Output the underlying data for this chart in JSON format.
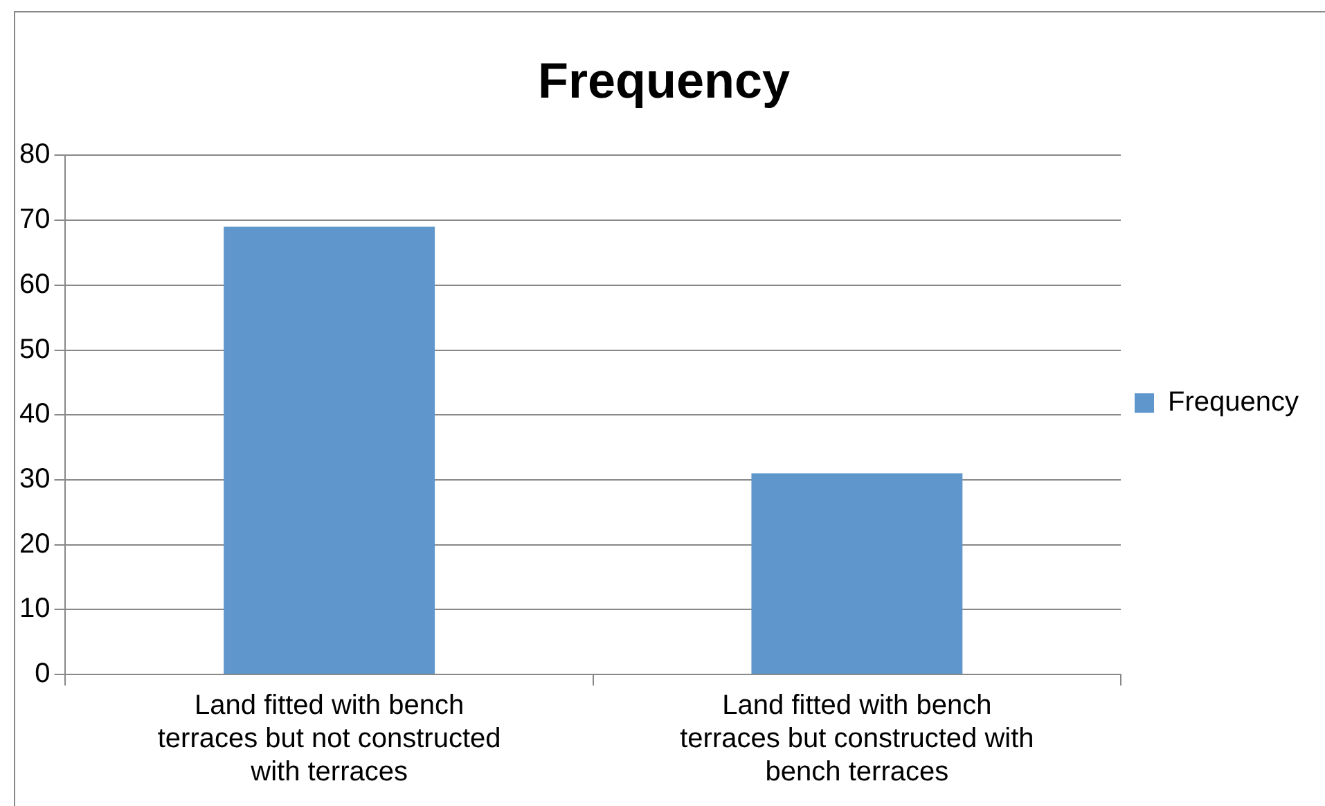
{
  "chart_data": {
    "type": "bar",
    "title": "Frequency",
    "categories": [
      "Land fitted with bench terraces but not constructed with terraces",
      "Land fitted with bench terraces but constructed with bench terraces"
    ],
    "series": [
      {
        "name": "Frequency",
        "color": "#5f97cc",
        "values": [
          69,
          31
        ]
      }
    ],
    "ylim": [
      0,
      80
    ],
    "yticks": [
      0,
      10,
      20,
      30,
      40,
      50,
      60,
      70,
      80
    ],
    "grid": "y",
    "legend": "right"
  }
}
